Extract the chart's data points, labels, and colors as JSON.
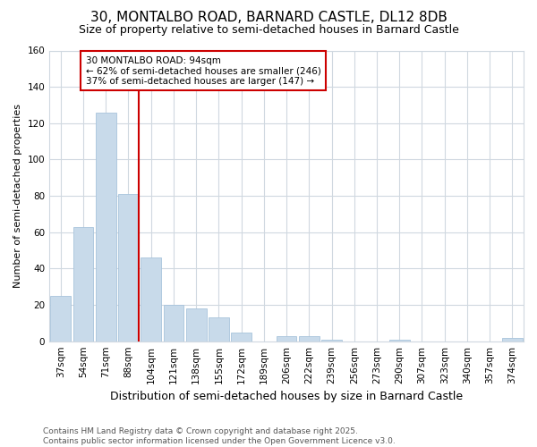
{
  "title_line1": "30, MONTALBO ROAD, BARNARD CASTLE, DL12 8DB",
  "title_line2": "Size of property relative to semi-detached houses in Barnard Castle",
  "xlabel": "Distribution of semi-detached houses by size in Barnard Castle",
  "ylabel": "Number of semi-detached properties",
  "footer": "Contains HM Land Registry data © Crown copyright and database right 2025.\nContains public sector information licensed under the Open Government Licence v3.0.",
  "categories": [
    "37sqm",
    "54sqm",
    "71sqm",
    "88sqm",
    "104sqm",
    "121sqm",
    "138sqm",
    "155sqm",
    "172sqm",
    "189sqm",
    "206sqm",
    "222sqm",
    "239sqm",
    "256sqm",
    "273sqm",
    "290sqm",
    "307sqm",
    "323sqm",
    "340sqm",
    "357sqm",
    "374sqm"
  ],
  "values": [
    25,
    63,
    126,
    81,
    46,
    20,
    18,
    13,
    5,
    0,
    3,
    3,
    1,
    0,
    0,
    1,
    0,
    0,
    0,
    0,
    2
  ],
  "bar_color": "#c8daea",
  "bar_edge_color": "#a8c4dc",
  "vline_index": 3,
  "vline_color": "#cc0000",
  "annotation_title": "30 MONTALBO ROAD: 94sqm",
  "annotation_line1": "← 62% of semi-detached houses are smaller (246)",
  "annotation_line2": "37% of semi-detached houses are larger (147) →",
  "annotation_box_facecolor": "#ffffff",
  "annotation_box_edgecolor": "#cc0000",
  "ylim": [
    0,
    160
  ],
  "yticks": [
    0,
    20,
    40,
    60,
    80,
    100,
    120,
    140,
    160
  ],
  "background_color": "#ffffff",
  "plot_bg_color": "#ffffff",
  "grid_color": "#d0d8e0",
  "title_fontsize": 11,
  "subtitle_fontsize": 9,
  "xlabel_fontsize": 9,
  "ylabel_fontsize": 8,
  "tick_fontsize": 7.5,
  "footer_fontsize": 6.5
}
